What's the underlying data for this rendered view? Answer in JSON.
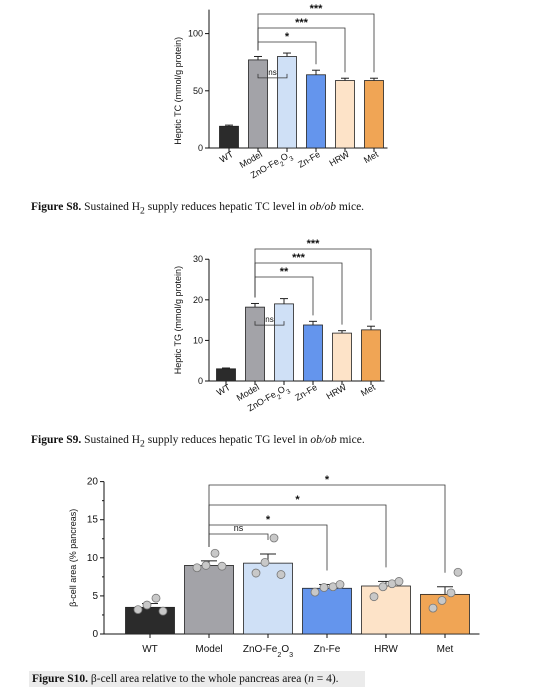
{
  "captions": [
    {
      "label": "Figure S8.",
      "text_pre": " Sustained H",
      "sub": "2",
      "text_mid": " supply reduces hepatic TC level in ",
      "italic": "ob/ob",
      "text_post": " mice."
    },
    {
      "label": "Figure S9.",
      "text_pre": " Sustained H",
      "sub": "2",
      "text_mid": " supply reduces hepatic TG level in ",
      "italic": "ob/ob",
      "text_post": " mice."
    },
    {
      "label": "Figure S10.",
      "text_pre": " β-cell area relative to the whole pancreas area (",
      "italic": "n",
      "text_post": " = 4)."
    }
  ],
  "chart_data": [
    {
      "type": "bar",
      "ylabel": "Heptic TC (mmol/g protein)",
      "categories": [
        "WT",
        "Model",
        "ZnO-Fe2O3",
        "Zn-Fe",
        "HRW",
        "Met"
      ],
      "values": [
        19,
        77,
        80,
        64,
        59,
        59
      ],
      "errors": [
        1,
        3,
        3,
        4,
        2,
        2
      ],
      "colors": [
        "#2b2b2b",
        "#a3a3a8",
        "#cfe0f6",
        "#6495ed",
        "#fde3c8",
        "#f0a555"
      ],
      "ylim": [
        0,
        125
      ],
      "yticks": [
        0,
        50,
        100
      ],
      "significance": [
        {
          "from": 1,
          "to": 2,
          "label": "ns"
        },
        {
          "from": 1,
          "to": 3,
          "label": "*"
        },
        {
          "from": 1,
          "to": 4,
          "label": "***"
        },
        {
          "from": 1,
          "to": 5,
          "label": "***"
        }
      ]
    },
    {
      "type": "bar",
      "ylabel": "Heptic TG (mmol/g protein)",
      "categories": [
        "WT",
        "Model",
        "ZnO-Fe2O3",
        "Zn-Fe",
        "HRW",
        "Met"
      ],
      "values": [
        3,
        18.2,
        19,
        13.8,
        11.8,
        12.6
      ],
      "errors": [
        0.2,
        0.9,
        1.3,
        0.9,
        0.6,
        0.9
      ],
      "colors": [
        "#2b2b2b",
        "#a3a3a8",
        "#cfe0f6",
        "#6495ed",
        "#fde3c8",
        "#f0a555"
      ],
      "ylim": [
        0,
        34
      ],
      "yticks": [
        0,
        10,
        20,
        30
      ],
      "significance": [
        {
          "from": 1,
          "to": 2,
          "label": "ns"
        },
        {
          "from": 1,
          "to": 3,
          "label": "**"
        },
        {
          "from": 1,
          "to": 4,
          "label": "***"
        },
        {
          "from": 1,
          "to": 5,
          "label": "***"
        }
      ]
    },
    {
      "type": "bar",
      "ylabel": "β-cell area (% pancreas)",
      "categories": [
        "WT",
        "Model",
        "ZnO-Fe2O3",
        "Zn-Fe",
        "HRW",
        "Met"
      ],
      "values": [
        3.5,
        9.0,
        9.3,
        6.0,
        6.3,
        5.2
      ],
      "errors": [
        0.5,
        0.6,
        1.2,
        0.5,
        0.6,
        1.0
      ],
      "points": [
        [
          3.2,
          3.8,
          4.7,
          3.0
        ],
        [
          8.7,
          9.0,
          10.6,
          8.9
        ],
        [
          8.0,
          9.4,
          12.6,
          7.8
        ],
        [
          5.5,
          6.1,
          6.2,
          6.5
        ],
        [
          4.9,
          6.2,
          6.6,
          6.9
        ],
        [
          3.4,
          4.4,
          5.4,
          8.1
        ]
      ],
      "colors": [
        "#2b2b2b",
        "#a3a3a8",
        "#cfe0f6",
        "#6495ed",
        "#fde3c8",
        "#f0a555"
      ],
      "ylim": [
        0,
        21
      ],
      "yticks": [
        0,
        5,
        10,
        15,
        20
      ],
      "significance": [
        {
          "from": 1,
          "to": 2,
          "label": "ns"
        },
        {
          "from": 1,
          "to": 3,
          "label": "*"
        },
        {
          "from": 1,
          "to": 4,
          "label": "*"
        },
        {
          "from": 1,
          "to": 5,
          "label": "*"
        }
      ]
    }
  ]
}
